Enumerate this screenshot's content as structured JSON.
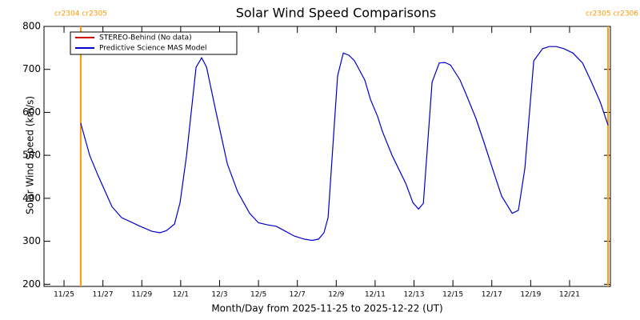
{
  "chart_data": {
    "type": "line",
    "title": "Solar Wind Speed Comparisons",
    "x_label": "Month/Day from 2025-11-25 to 2025-12-22 (UT)",
    "y_label": "Solar Wind Speed (km/s)",
    "xlim": [
      -1.03,
      28.1
    ],
    "xticks": [
      {
        "value": 0,
        "label": "11/25"
      },
      {
        "value": 2,
        "label": "11/27"
      },
      {
        "value": 4,
        "label": "11/29"
      },
      {
        "value": 6,
        "label": "12/1"
      },
      {
        "value": 8,
        "label": "12/3"
      },
      {
        "value": 10,
        "label": "12/5"
      },
      {
        "value": 12,
        "label": "12/7"
      },
      {
        "value": 14,
        "label": "12/9"
      },
      {
        "value": 16,
        "label": "12/11"
      },
      {
        "value": 18,
        "label": "12/13"
      },
      {
        "value": 20,
        "label": "12/15"
      },
      {
        "value": 22,
        "label": "12/17"
      },
      {
        "value": 24,
        "label": "12/19"
      },
      {
        "value": 26,
        "label": "12/21"
      }
    ],
    "ylim": [
      195,
      800
    ],
    "yticks": [
      200,
      300,
      400,
      500,
      600,
      700,
      800
    ],
    "x": [
      0.86,
      1.32,
      1.73,
      2.47,
      2.96,
      3.91,
      4.53,
      4.94,
      5.27,
      5.68,
      5.97,
      6.3,
      6.79,
      7.08,
      7.33,
      7.82,
      8.4,
      8.93,
      9.55,
      10.0,
      10.49,
      10.91,
      11.32,
      11.85,
      12.35,
      12.76,
      13.09,
      13.37,
      13.58,
      14.07,
      14.36,
      14.65,
      14.94,
      15.47,
      15.76,
      16.13,
      16.38,
      16.87,
      17.57,
      17.94,
      18.23,
      18.48,
      18.93,
      19.3,
      19.59,
      19.88,
      20.37,
      20.7,
      21.19,
      21.6,
      22.14,
      22.51,
      23.05,
      23.37,
      23.7,
      24.16,
      24.61,
      24.94,
      25.31,
      25.72,
      26.17,
      26.67,
      27.08,
      27.57,
      27.98
    ],
    "series": [
      {
        "name": "STEREO-Behind (No data)",
        "color": "#cc0000",
        "values": [
          null,
          null,
          null,
          null,
          null,
          null,
          null,
          null,
          null,
          null,
          null,
          null,
          null,
          null,
          null,
          null,
          null,
          null,
          null,
          null,
          null,
          null,
          null,
          null,
          null,
          null,
          null,
          null,
          null,
          null,
          null,
          null,
          null,
          null,
          null,
          null,
          null,
          null,
          null,
          null,
          null,
          null,
          null,
          null,
          null,
          null,
          null,
          null,
          null,
          null,
          null,
          null,
          null,
          null,
          null,
          null,
          null,
          null,
          null,
          null,
          null,
          null,
          null,
          null,
          null
        ]
      },
      {
        "name": "Predictive Science MAS Model",
        "color": "#0000cc",
        "values": [
          575,
          500,
          455,
          380,
          355,
          335,
          323,
          320,
          325,
          340,
          390,
          500,
          705,
          727,
          705,
          600,
          480,
          415,
          365,
          343,
          338,
          335,
          325,
          312,
          305,
          302,
          305,
          320,
          355,
          685,
          738,
          733,
          720,
          675,
          630,
          590,
          555,
          500,
          435,
          390,
          375,
          388,
          670,
          715,
          716,
          710,
          675,
          640,
          585,
          530,
          455,
          405,
          365,
          372,
          470,
          720,
          748,
          753,
          753,
          748,
          738,
          715,
          675,
          625,
          570
        ]
      }
    ],
    "markers": {
      "color": "#ff9900",
      "lines": [
        {
          "x": 0.86,
          "label": "cr2304 cr2305"
        },
        {
          "x": 27.98,
          "label": "cr2305 cr2306"
        }
      ]
    }
  }
}
